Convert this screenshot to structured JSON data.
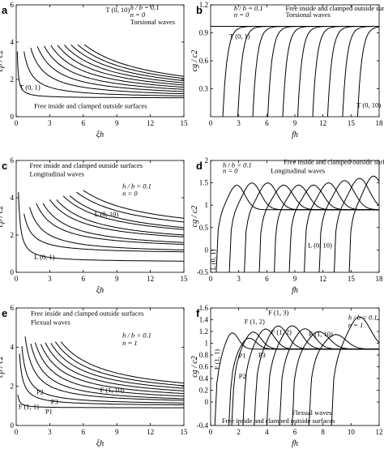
{
  "chart_data": [
    {
      "id": "a",
      "type": "line",
      "letter": "a",
      "xlabel": "ξh",
      "ylabel": "cp / c2",
      "xlim": [
        0,
        15
      ],
      "ylim": [
        0,
        6
      ],
      "xticks": [
        0,
        3,
        6,
        9,
        12,
        15
      ],
      "yticks": [
        0,
        2,
        4,
        6
      ],
      "annotations": [
        {
          "text": "h / b = 0.1",
          "x": 10.2,
          "y": 5.75,
          "italic": true
        },
        {
          "text": "n = 0",
          "x": 10.2,
          "y": 5.35,
          "italic": true
        },
        {
          "text": "Torsional waves",
          "x": 10.2,
          "y": 4.95
        },
        {
          "text": "T (0, 10)",
          "x": 8.0,
          "y": 5.6
        },
        {
          "text": "T (0, 1)",
          "x": 0.3,
          "y": 1.45
        },
        {
          "text": "Free inside and clamped outside surfaces",
          "x": 1.6,
          "y": 0.45
        }
      ],
      "series": [
        {
          "k": 0.5,
          "floor": 1.0,
          "xmin": 0.1
        },
        {
          "k": 3.5,
          "floor": 1.0,
          "xmin": 0.7
        },
        {
          "k": 7.0,
          "floor": 1.0,
          "xmin": 1.3
        },
        {
          "k": 10.5,
          "floor": 1.0,
          "xmin": 1.9
        },
        {
          "k": 14.0,
          "floor": 1.0,
          "xmin": 2.5
        },
        {
          "k": 17.5,
          "floor": 1.0,
          "xmin": 3.1
        },
        {
          "k": 21.0,
          "floor": 1.0,
          "xmin": 3.7
        },
        {
          "k": 24.5,
          "floor": 1.0,
          "xmin": 4.3
        },
        {
          "k": 28.0,
          "floor": 1.0,
          "xmin": 4.9
        },
        {
          "k": 31.5,
          "floor": 1.0,
          "xmin": 5.5
        },
        {
          "k": 35.0,
          "floor": 1.0,
          "xmin": 6.1
        }
      ]
    },
    {
      "id": "b",
      "type": "line",
      "letter": "b",
      "xlabel": "fh",
      "ylabel": "cg / c2",
      "xlim": [
        0,
        18
      ],
      "ylim": [
        0,
        1.2
      ],
      "xticks": [
        0,
        3,
        6,
        9,
        12,
        15,
        18
      ],
      "yticks": [
        0.3,
        0.6,
        0.9,
        1.2
      ],
      "annotations": [
        {
          "text": "h / b = 0.1",
          "x": 2.5,
          "y": 1.14,
          "italic": true
        },
        {
          "text": "n = 0",
          "x": 2.5,
          "y": 1.07,
          "italic": true
        },
        {
          "text": "Free inside and clamped outside surfaces",
          "x": 8.0,
          "y": 1.14
        },
        {
          "text": "Torsional waves",
          "x": 8.0,
          "y": 1.07
        },
        {
          "text": "T (0, 1)",
          "x": 2.0,
          "y": 0.84
        },
        {
          "text": "T (0, 10)",
          "x": 15.6,
          "y": 0.1
        }
      ],
      "series": [
        {
          "fc": 0.0,
          "asym": 0.97
        },
        {
          "fc": 1.3,
          "asym": 0.97
        },
        {
          "fc": 2.9,
          "asym": 0.97
        },
        {
          "fc": 4.5,
          "asym": 0.97
        },
        {
          "fc": 6.1,
          "asym": 0.97
        },
        {
          "fc": 7.7,
          "asym": 0.97
        },
        {
          "fc": 9.3,
          "asym": 0.97
        },
        {
          "fc": 10.9,
          "asym": 0.97
        },
        {
          "fc": 12.5,
          "asym": 0.97
        },
        {
          "fc": 14.1,
          "asym": 0.97
        },
        {
          "fc": 15.7,
          "asym": 0.97
        }
      ]
    },
    {
      "id": "c",
      "type": "line",
      "letter": "c",
      "xlabel": "ξh",
      "ylabel": "cp / c2",
      "xlim": [
        0,
        15
      ],
      "ylim": [
        0,
        6
      ],
      "xticks": [
        0,
        3,
        6,
        9,
        12,
        15
      ],
      "yticks": [
        0,
        2,
        4,
        6
      ],
      "annotations": [
        {
          "text": "Free inside and clamped outside surfaces",
          "x": 1.2,
          "y": 5.6
        },
        {
          "text": "Longitudinal waves",
          "x": 1.2,
          "y": 5.15
        },
        {
          "text": "h / b = 0.1",
          "x": 9.5,
          "y": 4.5,
          "italic": true
        },
        {
          "text": "n = 0",
          "x": 9.5,
          "y": 4.1,
          "italic": true
        },
        {
          "text": "L (0, 10)",
          "x": 7.0,
          "y": 3.0
        },
        {
          "text": "L (0, 1)",
          "x": 1.6,
          "y": 0.7
        }
      ],
      "series": [
        {
          "k": 1.5,
          "floor": 0.55,
          "xmin": 0.2
        },
        {
          "k": 3.0,
          "floor": 1.0,
          "xmin": 0.7
        },
        {
          "k": 6.0,
          "floor": 1.0,
          "xmin": 1.2
        },
        {
          "k": 9.0,
          "floor": 1.2,
          "xmin": 1.8
        },
        {
          "k": 12.0,
          "floor": 1.2,
          "xmin": 2.4
        },
        {
          "k": 15.0,
          "floor": 1.4,
          "xmin": 3.0
        },
        {
          "k": 18.0,
          "floor": 1.4,
          "xmin": 3.6
        },
        {
          "k": 21.0,
          "floor": 1.6,
          "xmin": 4.2
        },
        {
          "k": 24.0,
          "floor": 1.6,
          "xmin": 4.8
        },
        {
          "k": 27.0,
          "floor": 1.8,
          "xmin": 5.4
        },
        {
          "k": 30.0,
          "floor": 1.9,
          "xmin": 6.0
        }
      ]
    },
    {
      "id": "d",
      "type": "line",
      "letter": "d",
      "xlabel": "fh",
      "ylabel": "cg / c2",
      "xlim": [
        0,
        18
      ],
      "ylim": [
        -0.5,
        2.0
      ],
      "xticks": [
        0,
        3,
        6,
        9,
        12,
        15,
        18
      ],
      "yticks": [
        -0.5,
        0,
        0.5,
        1.0,
        1.5,
        2.0
      ],
      "annotations": [
        {
          "text": "Free inside and clamped outside surfaces",
          "x": 7.8,
          "y": 1.92
        },
        {
          "text": "h / b = 0.1",
          "x": 1.3,
          "y": 1.85,
          "italic": true
        },
        {
          "text": "n = 0",
          "x": 1.3,
          "y": 1.72,
          "italic": true
        },
        {
          "text": "Longitudinal waves",
          "x": 6.4,
          "y": 1.72
        },
        {
          "text": "L (0, 10)",
          "x": 10.4,
          "y": 0.05
        },
        {
          "text": "L (0, 1)",
          "x": 0.5,
          "y": -0.45,
          "rotate": true
        }
      ],
      "series": [
        {
          "fc": 0.6,
          "peak": 1.45,
          "w": 2.2
        },
        {
          "fc": 2.0,
          "peak": 1.5,
          "w": 2.4
        },
        {
          "fc": 3.6,
          "peak": 1.5,
          "w": 2.5
        },
        {
          "fc": 5.2,
          "peak": 1.45,
          "w": 2.6
        },
        {
          "fc": 6.8,
          "peak": 1.45,
          "w": 2.6
        },
        {
          "fc": 8.4,
          "peak": 1.45,
          "w": 2.6
        },
        {
          "fc": 10.0,
          "peak": 1.5,
          "w": 2.6
        },
        {
          "fc": 11.6,
          "peak": 1.55,
          "w": 2.7
        },
        {
          "fc": 13.2,
          "peak": 1.6,
          "w": 2.7
        },
        {
          "fc": 14.8,
          "peak": 1.65,
          "w": 2.6
        }
      ]
    },
    {
      "id": "e",
      "type": "line",
      "letter": "e",
      "xlabel": "ξh",
      "ylabel": "cp / c2",
      "xlim": [
        0,
        15
      ],
      "ylim": [
        0,
        6
      ],
      "xticks": [
        0,
        3,
        6,
        9,
        12,
        15
      ],
      "yticks": [
        0,
        2,
        4,
        6
      ],
      "annotations": [
        {
          "text": "Free inside and clamped outside surfaces",
          "x": 1.3,
          "y": 5.6
        },
        {
          "text": "Flexual waves",
          "x": 1.3,
          "y": 5.15
        },
        {
          "text": "h / b = 0.1",
          "x": 9.5,
          "y": 4.5,
          "italic": true
        },
        {
          "text": "n = 1",
          "x": 9.5,
          "y": 4.1,
          "italic": true
        },
        {
          "text": "F (1, 10)",
          "x": 7.5,
          "y": 1.7
        },
        {
          "text": "P2",
          "x": 1.8,
          "y": 1.6
        },
        {
          "text": "P3",
          "x": 3.1,
          "y": 1.1
        },
        {
          "text": "F (1, 1)",
          "x": 0.2,
          "y": 0.85
        },
        {
          "text": "P1",
          "x": 2.6,
          "y": 0.6
        }
      ],
      "series": [
        {
          "k": 0.2,
          "floor": 0.9,
          "xmin": 0.15
        },
        {
          "k": 1.6,
          "floor": 1.0,
          "xmin": 0.3
        },
        {
          "k": 3.0,
          "floor": 1.05,
          "xmin": 0.5
        },
        {
          "k": 5.5,
          "floor": 1.1,
          "xmin": 0.8
        },
        {
          "k": 8.0,
          "floor": 1.1,
          "xmin": 1.3
        },
        {
          "k": 10.5,
          "floor": 1.15,
          "xmin": 1.7
        },
        {
          "k": 13.0,
          "floor": 1.2,
          "xmin": 2.2
        },
        {
          "k": 15.5,
          "floor": 1.25,
          "xmin": 2.6
        },
        {
          "k": 18.0,
          "floor": 1.3,
          "xmin": 3.1
        },
        {
          "k": 20.5,
          "floor": 1.35,
          "xmin": 3.5
        },
        {
          "k": 23.0,
          "floor": 1.4,
          "xmin": 4.0
        }
      ]
    },
    {
      "id": "f",
      "type": "line",
      "letter": "f",
      "xlabel": "fh",
      "ylabel": "cg / c2",
      "xlim": [
        0,
        12
      ],
      "ylim": [
        -0.4,
        1.6
      ],
      "xticks": [
        0,
        2,
        4,
        6,
        8,
        10,
        12
      ],
      "yticks": [
        -0.4,
        0,
        0.2,
        0.4,
        0.6,
        0.8,
        1.0,
        1.2,
        1.4,
        1.6
      ],
      "annotations": [
        {
          "text": "h / b = 0.1",
          "x": 9.8,
          "y": 1.4,
          "italic": true
        },
        {
          "text": "n = 1",
          "x": 9.8,
          "y": 1.27,
          "italic": true
        },
        {
          "text": "F (1, 3)",
          "x": 4.1,
          "y": 1.48
        },
        {
          "text": "F (1, 2)",
          "x": 2.4,
          "y": 1.33
        },
        {
          "text": "F (1, 2)",
          "x": 4.3,
          "y": 1.15
        },
        {
          "text": "F (1, 10)",
          "x": 7.0,
          "y": 1.12
        },
        {
          "text": "P1",
          "x": 2.0,
          "y": 0.75
        },
        {
          "text": "P3",
          "x": 3.4,
          "y": 0.76
        },
        {
          "text": "P2",
          "x": 2.0,
          "y": 0.4
        },
        {
          "text": "F (1, 1)",
          "x": 0.6,
          "y": 0.55,
          "rotate": true
        },
        {
          "text": "Flexual waves",
          "x": 5.8,
          "y": -0.22
        },
        {
          "text": "Free inside and clamped outside surfaces",
          "x": 0.8,
          "y": -0.36
        }
      ],
      "series": [
        {
          "fc": 0.3,
          "peak": 1.2,
          "w": 1.2
        },
        {
          "fc": 1.3,
          "peak": 1.1,
          "w": 1.4
        },
        {
          "fc": 1.5,
          "peak": 1.2,
          "w": 1.5
        },
        {
          "fc": 2.3,
          "peak": 1.25,
          "w": 1.6
        },
        {
          "fc": 3.1,
          "peak": 1.3,
          "w": 1.7
        },
        {
          "fc": 4.0,
          "peak": 1.3,
          "w": 1.8
        },
        {
          "fc": 4.9,
          "peak": 1.25,
          "w": 1.8
        },
        {
          "fc": 5.8,
          "peak": 1.2,
          "w": 1.9
        },
        {
          "fc": 7.0,
          "peak": 1.15,
          "w": 1.9
        },
        {
          "fc": 8.6,
          "peak": 1.45,
          "w": 2.0
        }
      ]
    }
  ]
}
